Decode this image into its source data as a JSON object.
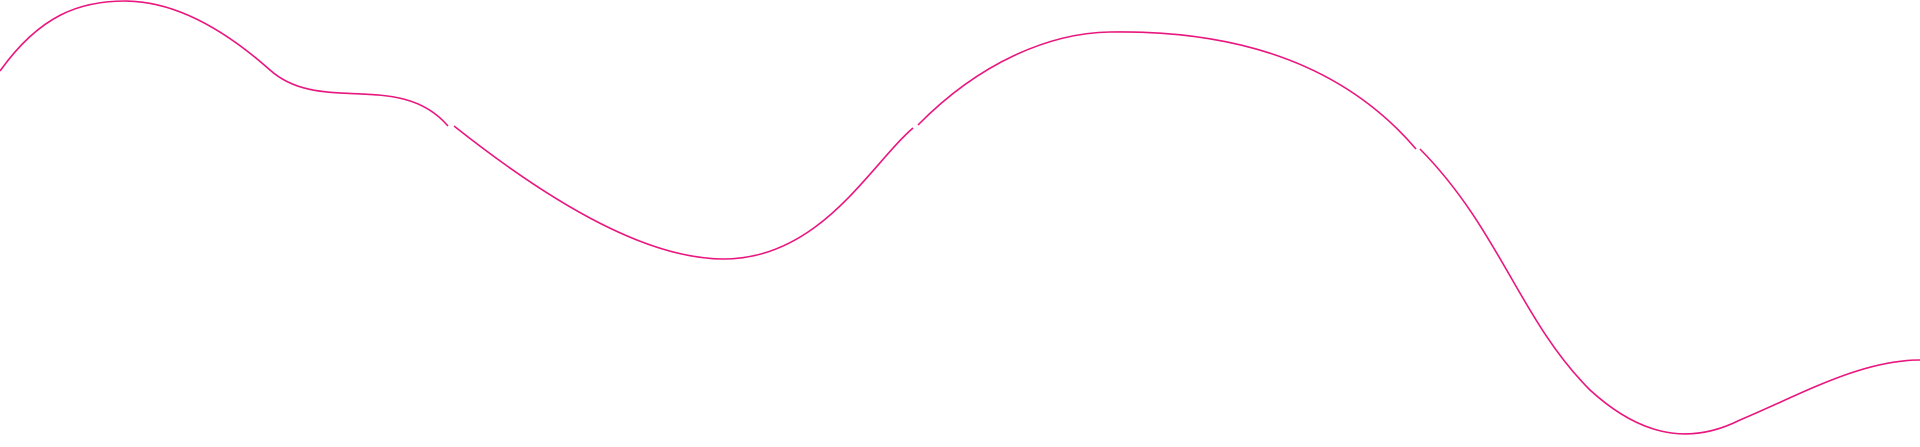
{
  "decoration": {
    "stroke_color": "#e8177f",
    "background_color": "#ffffff"
  }
}
